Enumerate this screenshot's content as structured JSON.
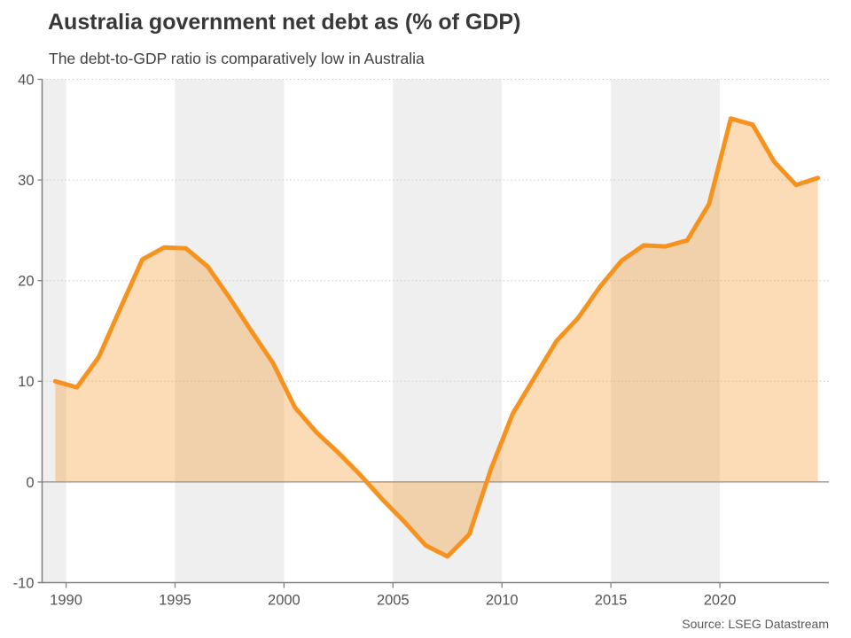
{
  "header": {
    "title": "Australia government net debt as (% of GDP)",
    "subtitle": "The debt-to-GDP ratio is comparatively low in Australia"
  },
  "footer": {
    "source": "Source: LSEG Datastream"
  },
  "chart_data": {
    "type": "area",
    "title": "Australia government net debt as (% of GDP)",
    "subtitle": "The debt-to-GDP ratio is comparatively low in Australia",
    "series_name": "Australia government net debt (% of GDP)",
    "x": [
      1989,
      1990,
      1991,
      1992,
      1993,
      1994,
      1995,
      1996,
      1997,
      1998,
      1999,
      2000,
      2001,
      2002,
      2003,
      2004,
      2005,
      2006,
      2007,
      2008,
      2009,
      2010,
      2011,
      2012,
      2013,
      2014,
      2015,
      2016,
      2017,
      2018,
      2019,
      2020,
      2021,
      2022,
      2023,
      2024
    ],
    "values": [
      10.0,
      9.4,
      12.4,
      17.3,
      22.1,
      23.3,
      23.2,
      21.4,
      18.3,
      15.0,
      11.8,
      7.4,
      4.9,
      2.9,
      0.7,
      -1.7,
      -3.9,
      -6.3,
      -7.4,
      -5.2,
      1.3,
      6.8,
      10.4,
      14.0,
      16.3,
      19.4,
      22.0,
      23.5,
      23.4,
      24.0,
      27.6,
      36.1,
      35.5,
      31.8,
      29.5,
      30.2
    ],
    "xlim": [
      1988.9,
      2025.0
    ],
    "ylim": [
      -10,
      40
    ],
    "x_ticks": [
      1990,
      1995,
      2000,
      2005,
      2010,
      2015,
      2020
    ],
    "y_ticks": [
      -10,
      0,
      10,
      20,
      30,
      40
    ],
    "x_point_offset": 0.5,
    "grid": "horizontal dotted",
    "zero_line": true,
    "legend": "none",
    "background_bands": [
      [
        1988.9,
        1990
      ],
      [
        1995,
        2000
      ],
      [
        2005,
        2010
      ],
      [
        2015,
        2020
      ]
    ],
    "colors": {
      "line": "#F6921E",
      "fill": "rgba(246,146,30,0.32)",
      "band": "#EFEFEF",
      "grid": "#CCCCCC",
      "zero_line": "#8C8C8C",
      "axis": "#808080",
      "tick_text": "#545454"
    }
  }
}
